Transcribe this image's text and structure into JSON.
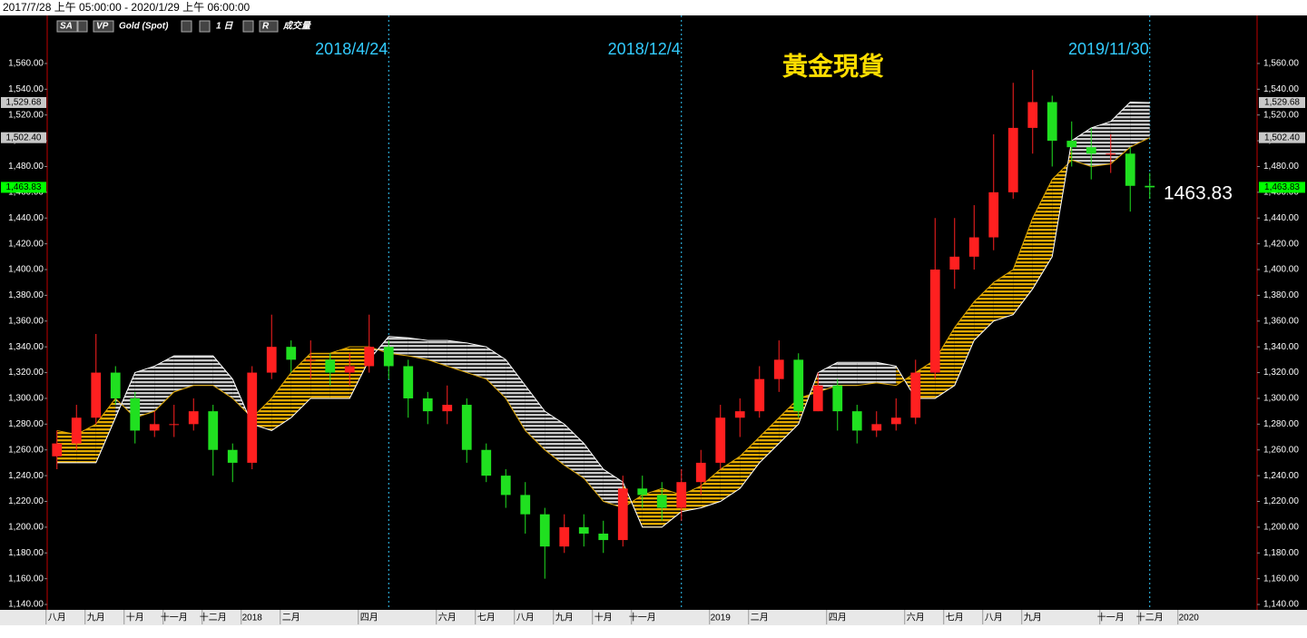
{
  "header": {
    "range": "2017/7/28 上午 05:00:00 - 2020/1/29 上午 06:00:00"
  },
  "toolbar": {
    "symbol": "SA",
    "vp": "VP",
    "instrument": "Gold (Spot)",
    "interval": "1 日",
    "r": "R",
    "volume": "成交量"
  },
  "chart_data": {
    "type": "candlestick",
    "title": "黃金現貨",
    "price_label": "1463.83",
    "categories": [
      "八月",
      null,
      "九月",
      null,
      "十月",
      null,
      "十一月",
      null,
      "十二月",
      null,
      "2018",
      null,
      "二月",
      null,
      null,
      null,
      "四月",
      null,
      null,
      null,
      "六月",
      null,
      "七月",
      null,
      "八月",
      null,
      "九月",
      null,
      "十月",
      null,
      "十一月",
      null,
      null,
      null,
      "2019",
      null,
      "二月",
      null,
      null,
      null,
      "四月",
      null,
      null,
      null,
      "六月",
      null,
      "七月",
      null,
      "八月",
      null,
      "九月",
      null,
      null,
      null,
      "十一月",
      null,
      "十二月",
      null,
      "2020",
      null,
      null,
      null
    ],
    "open": [
      1255,
      1265,
      1285,
      1320,
      1300,
      1275,
      1280,
      1280,
      1290,
      1260,
      1250,
      1320,
      1340,
      1330,
      1330,
      1320,
      1325,
      1340,
      1325,
      1300,
      1290,
      1295,
      1260,
      1240,
      1225,
      1210,
      1185,
      1200,
      1195,
      1190,
      1230,
      1225,
      1215,
      1235,
      1250,
      1285,
      1290,
      1315,
      1330,
      1290,
      1310,
      1290,
      1275,
      1280,
      1285,
      1320,
      1400,
      1410,
      1425,
      1460,
      1510,
      1530,
      1500,
      1495,
      1490,
      1490,
      1465,
      null,
      null,
      null,
      null,
      null
    ],
    "high": [
      1275,
      1295,
      1350,
      1325,
      1305,
      1290,
      1295,
      1300,
      1295,
      1265,
      1325,
      1365,
      1345,
      1345,
      1335,
      1335,
      1365,
      1345,
      1330,
      1305,
      1310,
      1300,
      1265,
      1245,
      1235,
      1215,
      1210,
      1210,
      1205,
      1240,
      1240,
      1235,
      1245,
      1260,
      1295,
      1300,
      1325,
      1345,
      1335,
      1320,
      1315,
      1295,
      1290,
      1300,
      1330,
      1440,
      1440,
      1450,
      1505,
      1545,
      1555,
      1535,
      1515,
      1510,
      1505,
      1495,
      1475,
      null,
      null,
      null,
      null,
      null
    ],
    "low": [
      1245,
      1260,
      1280,
      1295,
      1265,
      1270,
      1270,
      1275,
      1240,
      1235,
      1245,
      1315,
      1320,
      1315,
      1310,
      1310,
      1320,
      1315,
      1285,
      1280,
      1280,
      1250,
      1235,
      1215,
      1195,
      1160,
      1180,
      1185,
      1180,
      1185,
      1215,
      1205,
      1205,
      1225,
      1245,
      1270,
      1285,
      1305,
      1285,
      1290,
      1275,
      1265,
      1270,
      1275,
      1280,
      1315,
      1385,
      1400,
      1415,
      1455,
      1490,
      1480,
      1480,
      1470,
      1475,
      1445,
      1455,
      null,
      null,
      null,
      null,
      null
    ],
    "close": [
      1265,
      1285,
      1320,
      1300,
      1275,
      1280,
      1280,
      1290,
      1260,
      1250,
      1320,
      1340,
      1330,
      1330,
      1320,
      1325,
      1340,
      1325,
      1300,
      1290,
      1295,
      1260,
      1240,
      1225,
      1210,
      1185,
      1200,
      1195,
      1190,
      1230,
      1225,
      1215,
      1235,
      1250,
      1285,
      1290,
      1315,
      1330,
      1290,
      1310,
      1290,
      1275,
      1280,
      1285,
      1320,
      1400,
      1410,
      1425,
      1460,
      1510,
      1530,
      1500,
      1495,
      1490,
      1490,
      1465,
      1463.83,
      null,
      null,
      null,
      null,
      null
    ],
    "up_color": "#ff2020",
    "down_color": "#20e020",
    "cloud": {
      "span_a": [
        1275,
        1272,
        1280,
        1300,
        1285,
        1290,
        1305,
        1310,
        1310,
        1300,
        1285,
        1300,
        1320,
        1335,
        1335,
        1340,
        1340,
        1335,
        1333,
        1330,
        1325,
        1320,
        1315,
        1300,
        1275,
        1260,
        1248,
        1238,
        1220,
        1215,
        1225,
        1230,
        1225,
        1232,
        1245,
        1255,
        1270,
        1285,
        1300,
        1305,
        1310,
        1310,
        1312,
        1310,
        1320,
        1330,
        1355,
        1375,
        1390,
        1400,
        1440,
        1470,
        1485,
        1480,
        1482,
        1495,
        1502.4,
        null,
        null,
        null,
        null,
        null
      ],
      "span_b": [
        1250,
        1250,
        1250,
        1285,
        1320,
        1325,
        1333,
        1333,
        1333,
        1315,
        1280,
        1275,
        1285,
        1300,
        1300,
        1300,
        1330,
        1348,
        1347,
        1345,
        1345,
        1343,
        1340,
        1330,
        1310,
        1290,
        1280,
        1265,
        1245,
        1235,
        1200,
        1200,
        1212,
        1215,
        1220,
        1230,
        1250,
        1265,
        1280,
        1320,
        1328,
        1328,
        1328,
        1325,
        1300,
        1300,
        1310,
        1345,
        1360,
        1365,
        1385,
        1410,
        1500,
        1510,
        1515,
        1530,
        1529.68,
        null,
        null,
        null,
        null,
        null
      ],
      "bull_color": "#e0a800",
      "bear_color": "#c8c8c8"
    },
    "ylim": [
      1135.8,
      1597.3
    ],
    "yticks": [
      {
        "value": 1140,
        "label": "1,140.00"
      },
      {
        "value": 1160,
        "label": "1,160.00"
      },
      {
        "value": 1180,
        "label": "1,180.00"
      },
      {
        "value": 1200,
        "label": "1,200.00"
      },
      {
        "value": 1220,
        "label": "1,220.00"
      },
      {
        "value": 1240,
        "label": "1,240.00"
      },
      {
        "value": 1260,
        "label": "1,260.00"
      },
      {
        "value": 1280,
        "label": "1,280.00"
      },
      {
        "value": 1300,
        "label": "1,300.00"
      },
      {
        "value": 1320,
        "label": "1,320.00"
      },
      {
        "value": 1340,
        "label": "1,340.00"
      },
      {
        "value": 1360,
        "label": "1,360.00"
      },
      {
        "value": 1380,
        "label": "1,380.00"
      },
      {
        "value": 1400,
        "label": "1,400.00"
      },
      {
        "value": 1420,
        "label": "1,420.00"
      },
      {
        "value": 1440,
        "label": "1,440.00"
      },
      {
        "value": 1460,
        "label": "1,460.00"
      },
      {
        "value": 1480,
        "label": "1,480.00"
      },
      {
        "value": 1500,
        "label": "1,500.00"
      },
      {
        "value": 1520,
        "label": "1,520.00"
      },
      {
        "value": 1540,
        "label": "1,540.00"
      },
      {
        "value": 1560,
        "label": "1,560.00"
      }
    ],
    "markers": [
      {
        "value": 1529.68,
        "label": "1,529.68",
        "color": "#c8c8c8"
      },
      {
        "value": 1502.4,
        "label": "1,502.40",
        "color": "#c8c8c8"
      },
      {
        "value": 1463.83,
        "label": "1,463.83",
        "color": "#00ff00"
      }
    ],
    "annotations": [
      {
        "text": "2018/4/24",
        "index": 17
      },
      {
        "text": "2018/12/4",
        "index": 32
      },
      {
        "text": "2019/11/30",
        "index": 56
      }
    ]
  }
}
